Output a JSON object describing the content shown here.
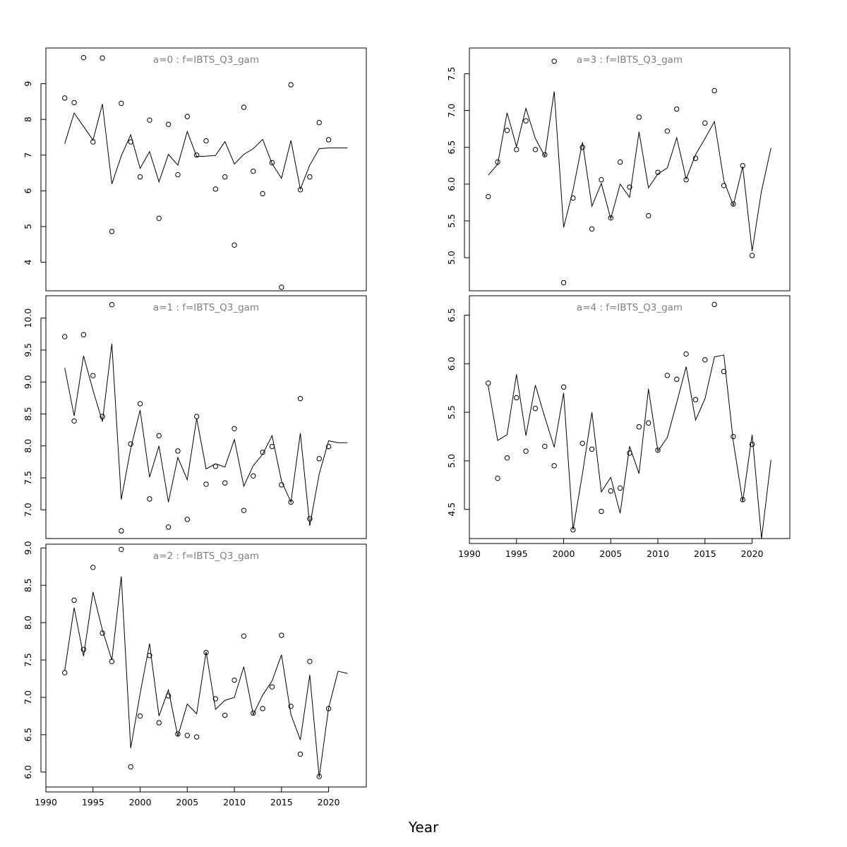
{
  "figure": {
    "xlabel": "Year"
  },
  "chart_data": [
    {
      "type": "line",
      "title": "a=0 : f=IBTS_Q3_gam",
      "xlim": [
        1990,
        2024
      ],
      "ylim": [
        3.2,
        10.0
      ],
      "yticks": [
        4,
        5,
        6,
        7,
        8,
        9
      ],
      "xticks": [],
      "points": {
        "x": [
          1992,
          1993,
          1994,
          1995,
          1996,
          1997,
          1998,
          1999,
          2000,
          2001,
          2002,
          2003,
          2004,
          2005,
          2006,
          2007,
          2008,
          2009,
          2010,
          2011,
          2012,
          2013,
          2014,
          2015,
          2016,
          2017,
          2018,
          2019,
          2020
        ],
        "y": [
          8.6,
          8.47,
          9.73,
          7.37,
          9.72,
          4.86,
          8.45,
          7.37,
          6.39,
          7.98,
          5.23,
          7.86,
          6.45,
          8.08,
          7.0,
          7.4,
          6.05,
          6.39,
          4.48,
          8.34,
          6.55,
          5.92,
          6.79,
          3.3,
          8.97,
          6.03,
          6.39,
          7.91,
          7.43
        ]
      },
      "fit": {
        "x": [
          1992,
          1993,
          1994,
          1995,
          1996,
          1997,
          1998,
          1999,
          2000,
          2001,
          2002,
          2003,
          2004,
          2005,
          2006,
          2007,
          2008,
          2009,
          2010,
          2011,
          2012,
          2013,
          2014,
          2015,
          2016,
          2017,
          2018,
          2019,
          2020,
          2021,
          2022
        ],
        "y": [
          7.32,
          8.18,
          7.8,
          7.42,
          8.43,
          6.19,
          6.98,
          7.57,
          6.63,
          7.1,
          6.25,
          7.02,
          6.72,
          7.66,
          6.96,
          6.97,
          6.99,
          7.38,
          6.75,
          7.02,
          7.18,
          7.44,
          6.76,
          6.35,
          7.41,
          6.05,
          6.72,
          7.18,
          7.2,
          7.2,
          7.2
        ]
      }
    },
    {
      "type": "line",
      "title": "a=1 : f=IBTS_Q3_gam",
      "xlim": [
        1990,
        2024
      ],
      "ylim": [
        6.55,
        10.35
      ],
      "yticks": [
        7.0,
        7.5,
        8.0,
        8.5,
        9.0,
        9.5,
        10.0
      ],
      "xticks": [],
      "points": {
        "x": [
          1992,
          1993,
          1994,
          1995,
          1996,
          1997,
          1998,
          1999,
          2000,
          2001,
          2002,
          2003,
          2004,
          2005,
          2006,
          2007,
          2008,
          2009,
          2010,
          2011,
          2012,
          2013,
          2014,
          2015,
          2016,
          2017,
          2018,
          2019,
          2020
        ],
        "y": [
          9.71,
          8.39,
          9.74,
          9.1,
          8.46,
          10.21,
          6.67,
          8.03,
          8.66,
          7.17,
          8.16,
          6.73,
          7.92,
          6.85,
          8.46,
          7.4,
          7.68,
          7.42,
          8.27,
          6.99,
          7.53,
          7.9,
          7.99,
          7.39,
          7.12,
          8.74,
          6.86,
          7.8,
          7.99
        ]
      },
      "fit": {
        "x": [
          1992,
          1993,
          1994,
          1995,
          1996,
          1997,
          1998,
          1999,
          2000,
          2001,
          2002,
          2003,
          2004,
          2005,
          2006,
          2007,
          2008,
          2009,
          2010,
          2011,
          2012,
          2013,
          2014,
          2015,
          2016,
          2017,
          2018,
          2019,
          2020,
          2021,
          2022
        ],
        "y": [
          9.22,
          8.47,
          9.41,
          8.87,
          8.38,
          9.6,
          7.16,
          7.96,
          8.56,
          7.51,
          8.0,
          7.12,
          7.82,
          7.47,
          8.43,
          7.64,
          7.72,
          7.67,
          8.1,
          7.37,
          7.69,
          7.87,
          8.16,
          7.45,
          7.12,
          8.2,
          6.75,
          7.56,
          8.08,
          8.05,
          8.05
        ]
      }
    },
    {
      "type": "line",
      "title": "a=2 : f=IBTS_Q3_gam",
      "xlim": [
        1990,
        2024
      ],
      "ylim": [
        5.8,
        9.05
      ],
      "yticks": [
        6.0,
        6.5,
        7.0,
        7.5,
        8.0,
        8.5,
        9.0
      ],
      "xticks": [
        1990,
        1995,
        2000,
        2005,
        2010,
        2015,
        2020
      ],
      "points": {
        "x": [
          1992,
          1993,
          1994,
          1995,
          1996,
          1997,
          1998,
          1999,
          2000,
          2001,
          2002,
          2003,
          2004,
          2005,
          2006,
          2007,
          2008,
          2009,
          2010,
          2011,
          2012,
          2013,
          2014,
          2015,
          2016,
          2017,
          2018,
          2019,
          2020
        ],
        "y": [
          7.33,
          8.3,
          7.64,
          8.74,
          7.86,
          7.48,
          8.98,
          6.07,
          6.75,
          7.56,
          6.66,
          7.02,
          6.51,
          6.49,
          6.47,
          7.6,
          6.98,
          6.76,
          7.23,
          7.82,
          6.79,
          6.85,
          7.14,
          7.83,
          6.88,
          6.24,
          7.48,
          5.94,
          6.85
        ]
      },
      "fit": {
        "x": [
          1992,
          1993,
          1994,
          1995,
          1996,
          1997,
          1998,
          1999,
          2000,
          2001,
          2002,
          2003,
          2004,
          2005,
          2006,
          2007,
          2008,
          2009,
          2010,
          2011,
          2012,
          2013,
          2014,
          2015,
          2016,
          2017,
          2018,
          2019,
          2020,
          2021,
          2022
        ],
        "y": [
          7.36,
          8.2,
          7.55,
          8.41,
          7.9,
          7.5,
          8.62,
          6.32,
          7.05,
          7.72,
          6.75,
          7.1,
          6.48,
          6.91,
          6.78,
          7.61,
          6.84,
          6.96,
          7.0,
          7.41,
          6.77,
          7.03,
          7.22,
          7.57,
          6.77,
          6.43,
          7.3,
          5.93,
          6.86,
          7.35,
          7.32
        ]
      }
    },
    {
      "type": "line",
      "title": "a=3 : f=IBTS_Q3_gam",
      "xlim": [
        1990,
        2024
      ],
      "ylim": [
        4.55,
        7.85
      ],
      "yticks": [
        5.0,
        5.5,
        6.0,
        6.5,
        7.0,
        7.5
      ],
      "xticks": [],
      "points": {
        "x": [
          1992,
          1993,
          1994,
          1995,
          1996,
          1997,
          1998,
          1999,
          2000,
          2001,
          2002,
          2003,
          2004,
          2005,
          2006,
          2007,
          2008,
          2009,
          2010,
          2011,
          2012,
          2013,
          2014,
          2015,
          2016,
          2017,
          2018,
          2019,
          2020
        ],
        "y": [
          5.83,
          6.3,
          6.73,
          6.47,
          6.86,
          6.47,
          6.4,
          7.67,
          4.66,
          5.81,
          6.5,
          5.39,
          6.06,
          5.54,
          6.3,
          5.96,
          6.91,
          5.57,
          6.16,
          6.72,
          7.02,
          6.06,
          6.35,
          6.83,
          7.27,
          5.98,
          5.73,
          6.25,
          5.03
        ]
      },
      "fit": {
        "x": [
          1992,
          1993,
          1994,
          1995,
          1996,
          1997,
          1998,
          1999,
          2000,
          2001,
          2002,
          2003,
          2004,
          2005,
          2006,
          2007,
          2008,
          2009,
          2010,
          2011,
          2012,
          2013,
          2014,
          2015,
          2016,
          2017,
          2018,
          2019,
          2020,
          2021,
          2022
        ],
        "y": [
          6.12,
          6.27,
          6.97,
          6.51,
          7.03,
          6.62,
          6.38,
          7.26,
          5.41,
          5.92,
          6.57,
          5.7,
          6.01,
          5.53,
          6.0,
          5.82,
          6.71,
          5.95,
          6.14,
          6.22,
          6.63,
          6.07,
          6.4,
          6.62,
          6.85,
          6.05,
          5.71,
          6.24,
          5.09,
          5.91,
          6.49
        ]
      }
    },
    {
      "type": "line",
      "title": "a=4 : f=IBTS_Q3_gam",
      "xlim": [
        1990,
        2024
      ],
      "ylim": [
        4.2,
        6.7
      ],
      "yticks": [
        4.5,
        5.0,
        5.5,
        6.0,
        6.5
      ],
      "xticks": [
        1990,
        1995,
        2000,
        2005,
        2010,
        2015,
        2020
      ],
      "points": {
        "x": [
          1992,
          1993,
          1994,
          1995,
          1996,
          1997,
          1998,
          1999,
          2000,
          2001,
          2002,
          2003,
          2004,
          2005,
          2006,
          2007,
          2008,
          2009,
          2010,
          2011,
          2012,
          2013,
          2014,
          2015,
          2016,
          2017,
          2018,
          2019,
          2020
        ],
        "y": [
          5.8,
          4.82,
          5.03,
          5.65,
          5.1,
          5.54,
          5.15,
          4.95,
          5.76,
          4.29,
          5.18,
          5.12,
          4.48,
          4.69,
          4.72,
          5.08,
          5.35,
          5.39,
          5.11,
          5.88,
          5.84,
          6.1,
          5.63,
          6.04,
          6.61,
          5.92,
          5.25,
          4.6,
          5.17
        ]
      },
      "fit": {
        "x": [
          1992,
          1993,
          1994,
          1995,
          1996,
          1997,
          1998,
          1999,
          2000,
          2001,
          2002,
          2003,
          2004,
          2005,
          2006,
          2007,
          2008,
          2009,
          2010,
          2011,
          2012,
          2013,
          2014,
          2015,
          2016,
          2017,
          2018,
          2019,
          2020,
          2021,
          2022
        ],
        "y": [
          5.77,
          5.21,
          5.27,
          5.89,
          5.26,
          5.78,
          5.45,
          5.14,
          5.7,
          4.29,
          4.87,
          5.5,
          4.68,
          4.83,
          4.46,
          5.15,
          4.87,
          5.74,
          5.1,
          5.24,
          5.6,
          5.97,
          5.42,
          5.64,
          6.07,
          6.09,
          5.2,
          4.58,
          5.27,
          4.2,
          5.01
        ]
      }
    }
  ]
}
